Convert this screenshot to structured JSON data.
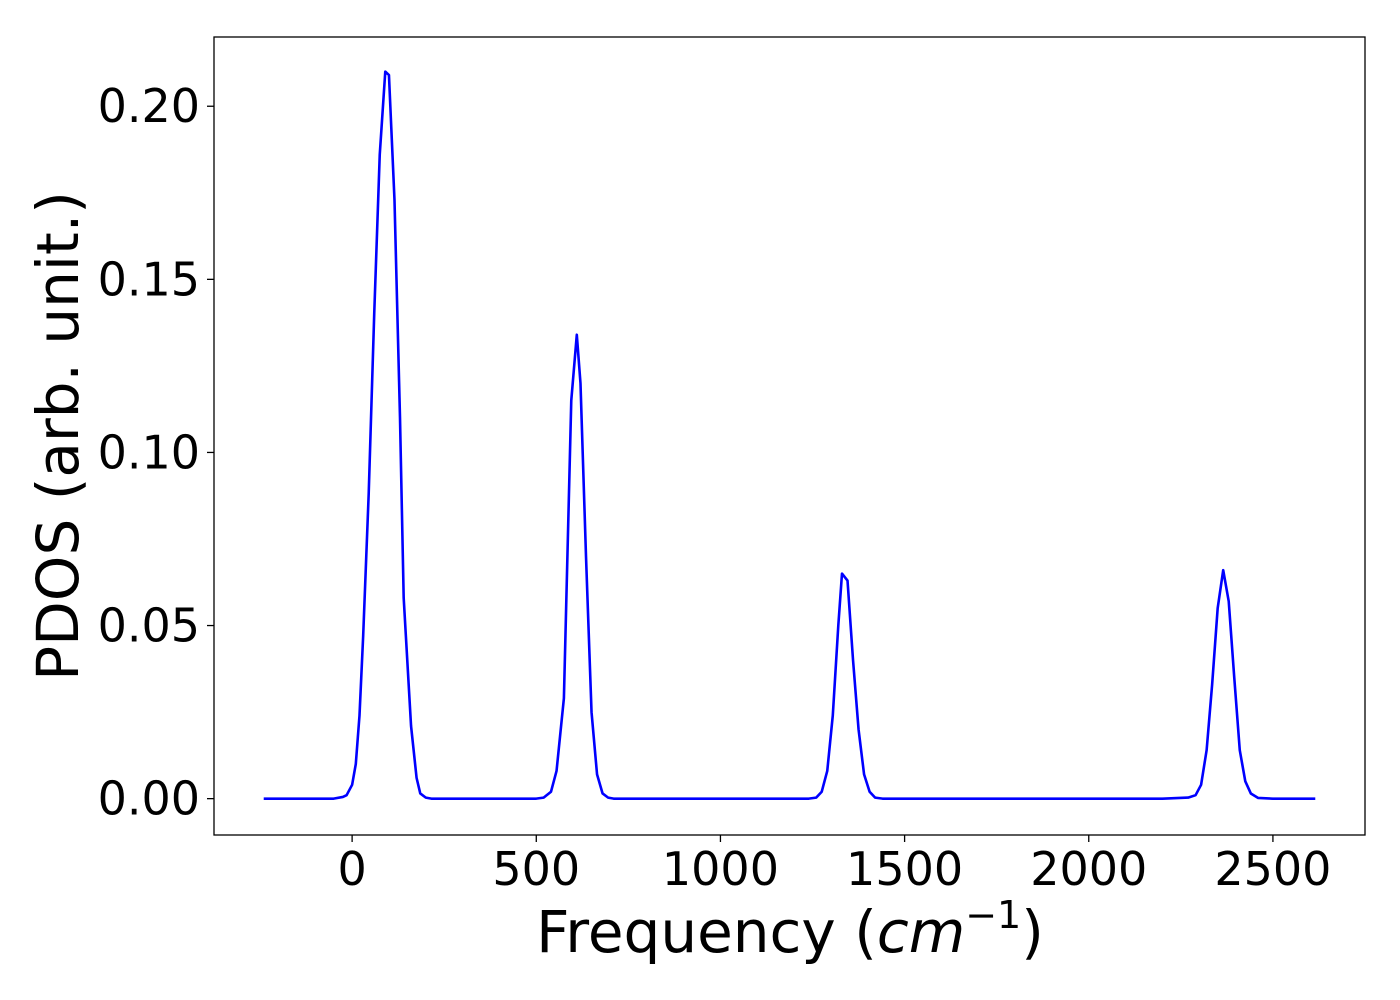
{
  "chart_data": {
    "type": "line",
    "title": "",
    "xlabel": "Frequency",
    "xlabel_unit_open": "(",
    "xlabel_unit_base": "cm",
    "xlabel_unit_exp": "−1",
    "xlabel_unit_close": ")",
    "ylabel": "PDOS (arb. unit.)",
    "xlim": [
      -375,
      2750
    ],
    "ylim": [
      -0.0105,
      0.22
    ],
    "xticks": [
      0,
      500,
      1000,
      1500,
      2000,
      2500
    ],
    "xtick_labels": [
      "0",
      "500",
      "1000",
      "1500",
      "2000",
      "2500"
    ],
    "yticks": [
      0.0,
      0.05,
      0.1,
      0.15,
      0.2
    ],
    "ytick_labels": [
      "0.00",
      "0.05",
      "0.10",
      "0.15",
      "0.20"
    ],
    "grid": false,
    "legend": false,
    "series": [
      {
        "color": "#0000ff",
        "x": [
          -240,
          -200,
          -150,
          -100,
          -50,
          -25,
          -15,
          0,
          10,
          20,
          30,
          45,
          60,
          75,
          90,
          100,
          115,
          130,
          140,
          160,
          175,
          185,
          200,
          215,
          230,
          250,
          300,
          400,
          500,
          520,
          540,
          555,
          575,
          595,
          610,
          620,
          635,
          650,
          665,
          680,
          695,
          710,
          730,
          800,
          1000,
          1200,
          1240,
          1260,
          1275,
          1290,
          1305,
          1320,
          1330,
          1345,
          1360,
          1375,
          1390,
          1405,
          1420,
          1440,
          1500,
          1800,
          2000,
          2200,
          2270,
          2290,
          2305,
          2320,
          2335,
          2350,
          2365,
          2380,
          2395,
          2410,
          2425,
          2440,
          2460,
          2500,
          2615
        ],
        "values": [
          0,
          0,
          0,
          0,
          0,
          0.0005,
          0.001,
          0.004,
          0.01,
          0.024,
          0.047,
          0.088,
          0.14,
          0.186,
          0.21,
          0.209,
          0.173,
          0.11,
          0.058,
          0.021,
          0.006,
          0.0015,
          0.0003,
          0,
          0,
          0,
          0,
          0,
          0,
          0.0003,
          0.002,
          0.008,
          0.029,
          0.115,
          0.134,
          0.12,
          0.07,
          0.025,
          0.007,
          0.0015,
          0.0003,
          0,
          0,
          0,
          0,
          0,
          0,
          0.0003,
          0.002,
          0.008,
          0.024,
          0.05,
          0.065,
          0.063,
          0.04,
          0.02,
          0.007,
          0.002,
          0.0003,
          0,
          0,
          0,
          0,
          0,
          0.0003,
          0.001,
          0.004,
          0.014,
          0.033,
          0.055,
          0.066,
          0.057,
          0.035,
          0.014,
          0.005,
          0.0015,
          0.0002,
          0,
          0
        ]
      }
    ]
  }
}
